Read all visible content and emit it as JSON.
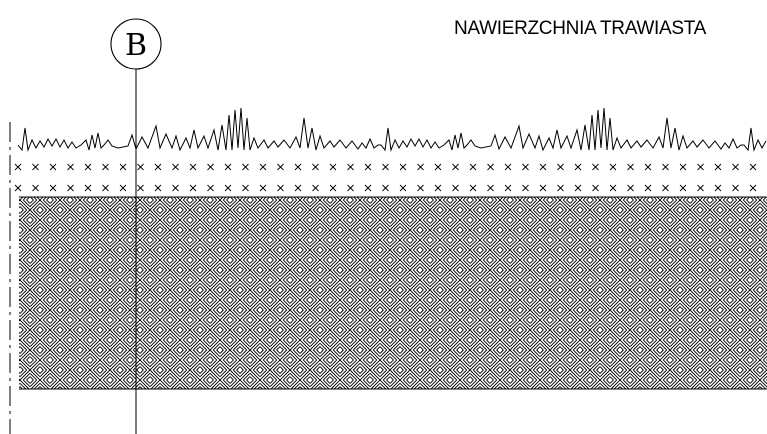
{
  "drawing": {
    "title": "NAWIERZCHNIA TRAWIASTA",
    "axis_marker": "B",
    "layers": [
      {
        "name": "grass-surface-layer",
        "pattern": "grass"
      },
      {
        "name": "topsoil-layer",
        "pattern": "cross-marks"
      },
      {
        "name": "aggregate-base-layer",
        "pattern": "herringbone-hatch"
      }
    ],
    "colors": {
      "line": "#000000",
      "background": "#ffffff"
    }
  }
}
